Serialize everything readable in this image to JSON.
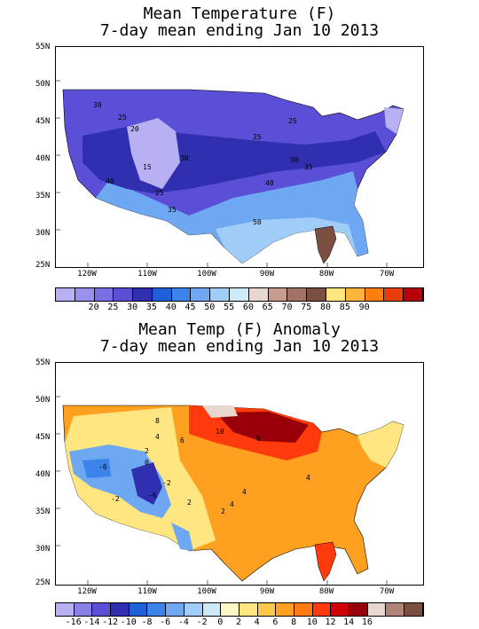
{
  "top": {
    "title_line1": "Mean Temperature (F)",
    "title_line2": "7-day mean ending Jan 10 2013",
    "lat_labels": [
      "55N",
      "50N",
      "45N",
      "40N",
      "35N",
      "30N",
      "25N"
    ],
    "lon_labels": [
      "120W",
      "110W",
      "100W",
      "90W",
      "80W",
      "70W"
    ],
    "colorbar_colors": [
      "#b7b0f2",
      "#9a90ee",
      "#7b6fe6",
      "#5a4fd6",
      "#2f2fb0",
      "#1f5fd8",
      "#3d84ea",
      "#6fa8f2",
      "#a0cdf7",
      "#cdeaf8",
      "#e9d6cf",
      "#c99a8e",
      "#a07268",
      "#7c4e42",
      "#ffe680",
      "#ffb43c",
      "#ff7f0e",
      "#e83d0c",
      "#b8000a"
    ],
    "colorbar_labels": [
      "20",
      "25",
      "30",
      "35",
      "40",
      "45",
      "50",
      "55",
      "60",
      "65",
      "70",
      "75",
      "80",
      "85",
      "90"
    ],
    "contour_labels": [
      "30",
      "25",
      "20",
      "15",
      "30",
      "25",
      "40",
      "25",
      "35",
      "25",
      "30",
      "35",
      "40",
      "50"
    ]
  },
  "bottom": {
    "title_line1": "Mean Temp (F) Anomaly",
    "title_line2": "7-day mean ending Jan 10 2013",
    "lat_labels": [
      "55N",
      "50N",
      "45N",
      "40N",
      "35N",
      "30N",
      "25N"
    ],
    "lon_labels": [
      "120W",
      "110W",
      "100W",
      "90W",
      "80W",
      "70W"
    ],
    "colorbar_colors": [
      "#b7b0f2",
      "#8b7fe8",
      "#5a4fd6",
      "#2f2fb0",
      "#1f5fd8",
      "#3d84ea",
      "#6fa8f2",
      "#a0cdf7",
      "#cdeaf8",
      "#fff6c8",
      "#ffe680",
      "#ffc84a",
      "#ffa020",
      "#ff7a10",
      "#ff3a0c",
      "#d0000a",
      "#98000a",
      "#e9d6cf",
      "#b08478",
      "#7c4e42"
    ],
    "colorbar_labels": [
      "-16",
      "-14",
      "-12",
      "-10",
      "-8",
      "-6",
      "-4",
      "-2",
      "0",
      "2",
      "4",
      "6",
      "8",
      "10",
      "12",
      "14",
      "16"
    ],
    "contour_labels": [
      "8",
      "4",
      "10",
      "6",
      "-6",
      "2",
      "0",
      "-2",
      "-6",
      "-2",
      "2",
      "4",
      "6",
      "4",
      "2",
      "4"
    ]
  }
}
